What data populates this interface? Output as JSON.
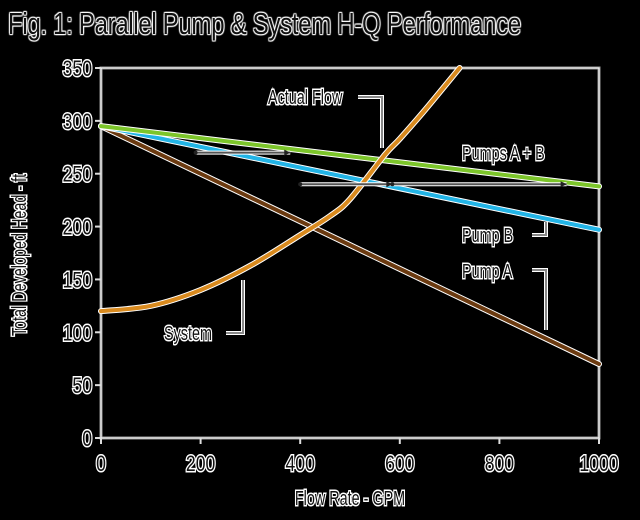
{
  "title": "Fig. 1: Parallel Pump & System H-Q Performance",
  "chart_data": {
    "type": "line",
    "title": "Fig. 1: Parallel Pump & System H-Q Performance",
    "xlabel": "Flow Rate - GPM",
    "ylabel": "Total Developed Head - ft",
    "xlim": [
      0,
      1000
    ],
    "ylim": [
      0,
      350
    ],
    "xticks": [
      "0",
      "200",
      "400",
      "600",
      "800",
      "1000"
    ],
    "yticks": [
      "0",
      "50",
      "100",
      "150",
      "200",
      "250",
      "300",
      "350"
    ],
    "grid": false,
    "legend": "inline annotations",
    "series": [
      {
        "name": "Pump A",
        "color": "#6b3a10",
        "x": [
          0,
          1000
        ],
        "y": [
          295,
          70
        ]
      },
      {
        "name": "Pump B",
        "color": "#22b4e6",
        "x": [
          0,
          1000
        ],
        "y": [
          295,
          197
        ]
      },
      {
        "name": "Pumps A + B",
        "color": "#7cc52a",
        "x": [
          0,
          1000
        ],
        "y": [
          295,
          238
        ]
      },
      {
        "name": "System",
        "color": "#d98a1e",
        "x": [
          0,
          100,
          200,
          300,
          400,
          460,
          500,
          570,
          600,
          650,
          720
        ],
        "y": [
          120,
          125,
          140,
          163,
          192,
          210,
          226,
          268,
          283,
          310,
          350
        ]
      }
    ],
    "annotations": [
      {
        "text": "Actual Flow",
        "x": 570,
        "y": 270
      },
      {
        "text": "Pumps A + B",
        "x": 930,
        "y": 240
      },
      {
        "text": "Pump B",
        "x": 900,
        "y": 205
      },
      {
        "text": "Pump A",
        "x": 900,
        "y": 100
      },
      {
        "text": "System",
        "x": 290,
        "y": 150
      }
    ],
    "addition_arrows": [
      {
        "y": 270,
        "from_x": 190,
        "to_x": 380
      },
      {
        "y": 240,
        "from_x": 400,
        "to_x": 585
      },
      {
        "y": 240,
        "from_x": 585,
        "to_x": 935
      }
    ]
  }
}
